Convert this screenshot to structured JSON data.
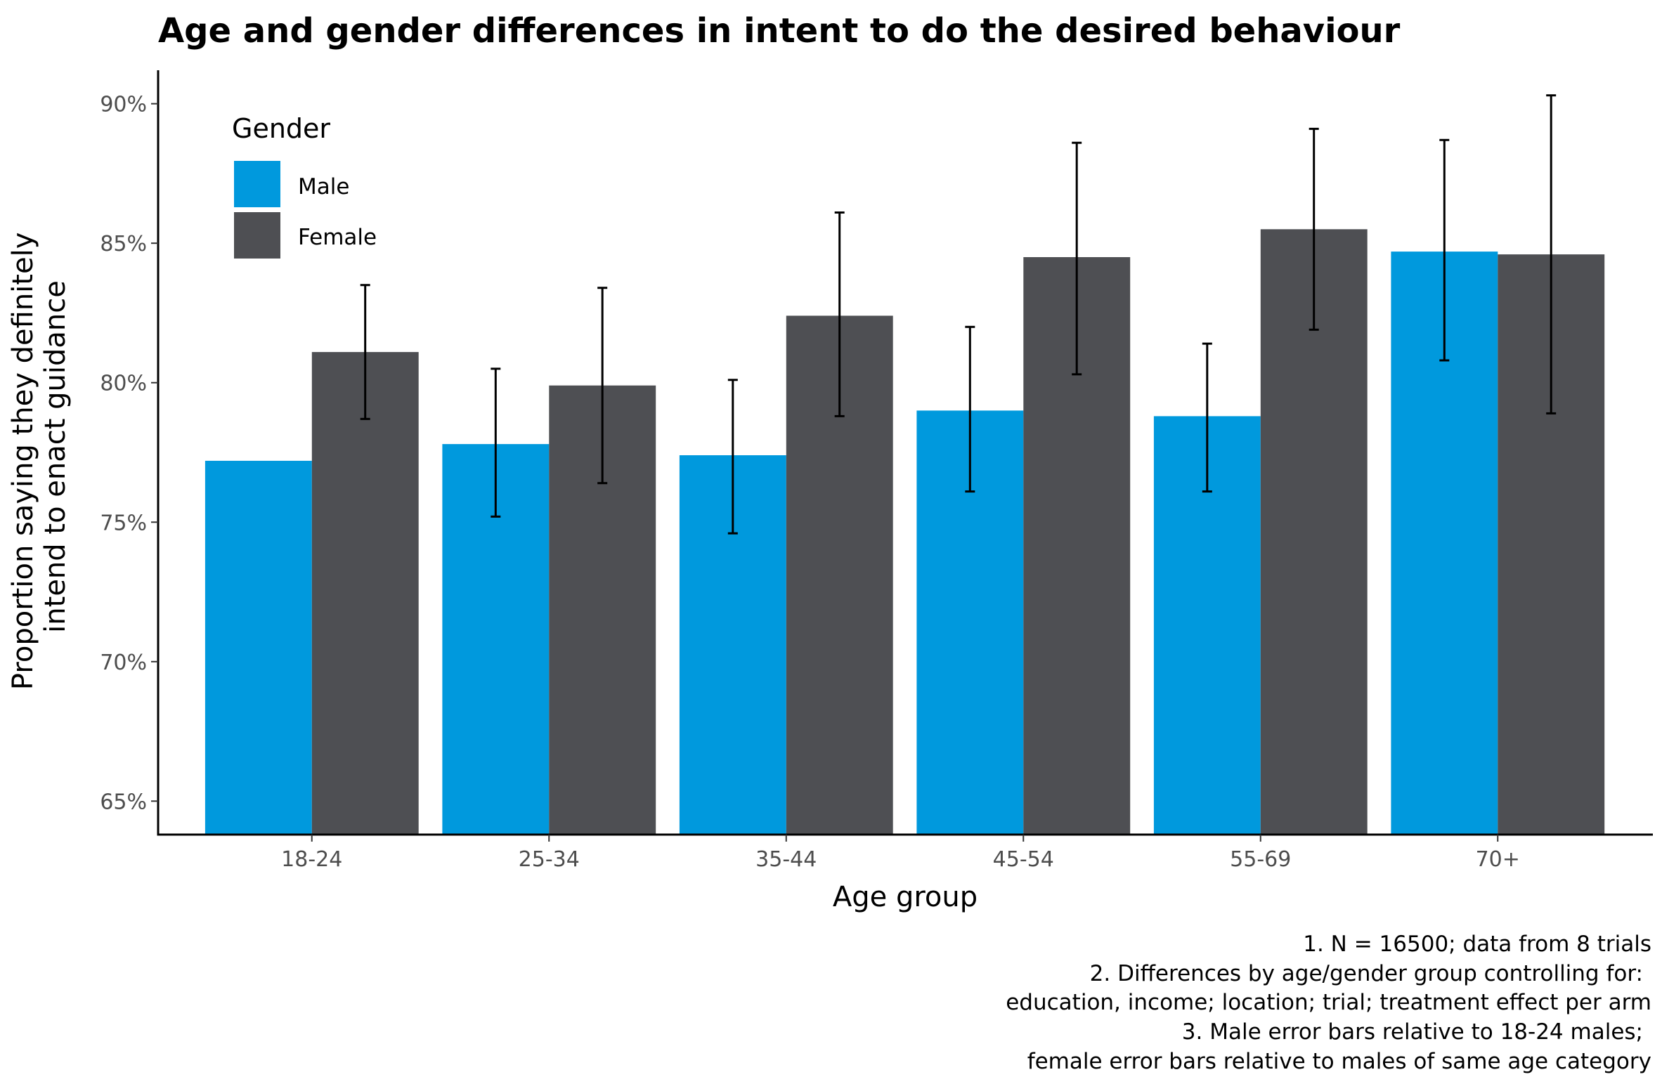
{
  "chart_data": {
    "type": "bar",
    "title": "Age and gender differences in intent to do the desired behaviour",
    "xlabel": "Age group",
    "ylabel_lines": [
      "Proportion saying they definitely",
      "intend to enact guidance"
    ],
    "categories": [
      "18-24",
      "25-34",
      "35-44",
      "45-54",
      "55-69",
      "70+"
    ],
    "ylim": [
      63.8,
      91.2
    ],
    "yticks": [
      65,
      70,
      75,
      80,
      85,
      90
    ],
    "ytick_labels": [
      "65%",
      "70%",
      "75%",
      "80%",
      "85%",
      "90%"
    ],
    "grid": false,
    "legend": {
      "title": "Gender",
      "placement": "top-left"
    },
    "series": [
      {
        "name": "Male",
        "color": "#0099DD",
        "values": [
          77.2,
          77.8,
          77.4,
          79.0,
          78.8,
          84.7
        ],
        "error_low": [
          null,
          75.2,
          74.6,
          76.1,
          76.1,
          80.8
        ],
        "error_high": [
          null,
          80.5,
          80.1,
          82.0,
          81.4,
          88.7
        ]
      },
      {
        "name": "Female",
        "color": "#4E4F53",
        "values": [
          81.1,
          79.9,
          82.4,
          84.5,
          85.5,
          84.6
        ],
        "error_low": [
          78.7,
          76.4,
          78.8,
          80.3,
          81.9,
          78.9
        ],
        "error_high": [
          83.5,
          83.4,
          86.1,
          88.6,
          89.1,
          90.3
        ]
      }
    ],
    "caption_lines": [
      "1. N = 16500; data from 8 trials",
      "2. Differences by age/gender group controlling for:",
      "education, income; location; trial; treatment effect per arm",
      "3. Male error bars relative to 18-24 males;",
      "female error bars relative to males of same age category"
    ]
  }
}
